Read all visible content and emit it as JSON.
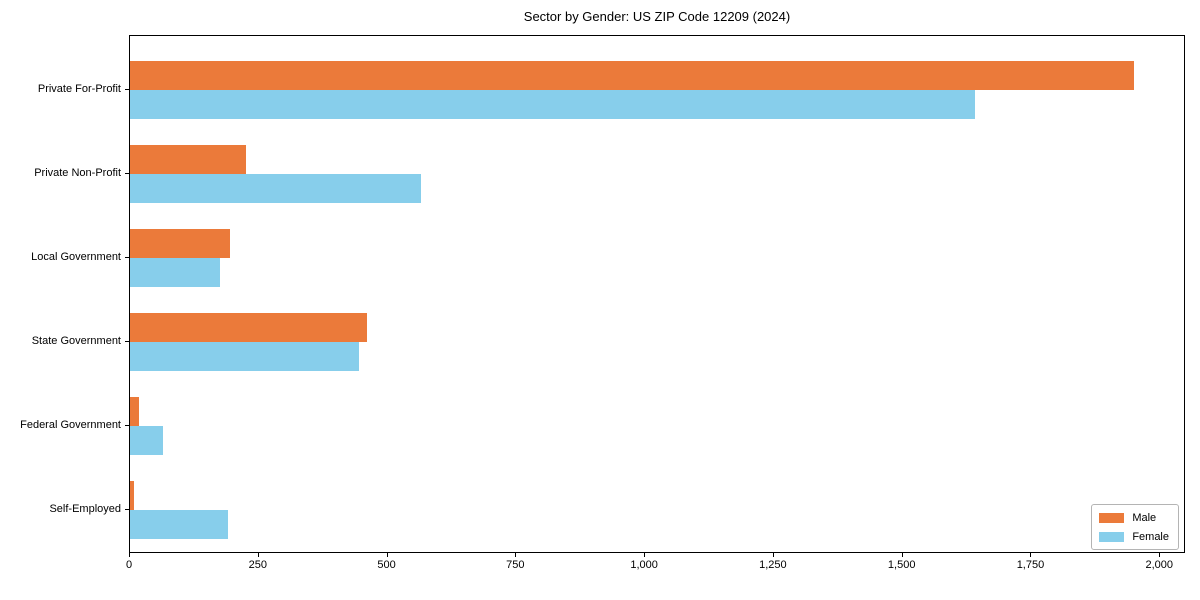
{
  "chart_data": {
    "type": "bar",
    "orientation": "horizontal",
    "title": "Sector by Gender: US ZIP Code 12209 (2024)",
    "categories": [
      "Private For-Profit",
      "Private Non-Profit",
      "Local Government",
      "State Government",
      "Federal Government",
      "Self-Employed"
    ],
    "series": [
      {
        "name": "Male",
        "color": "#EB7A3A",
        "values": [
          1950,
          225,
          195,
          460,
          18,
          8
        ]
      },
      {
        "name": "Female",
        "color": "#87CEEB",
        "values": [
          1640,
          565,
          175,
          445,
          65,
          190
        ]
      }
    ],
    "xlabel": "",
    "ylabel": "",
    "xlim": [
      0,
      2050
    ],
    "x_ticks": [
      0,
      250,
      500,
      750,
      1000,
      1250,
      1500,
      1750,
      2000
    ],
    "x_tick_labels": [
      "0",
      "250",
      "500",
      "750",
      "1,000",
      "1,250",
      "1,500",
      "1,750",
      "2,000"
    ],
    "grid": false,
    "legend_position": "lower right"
  }
}
